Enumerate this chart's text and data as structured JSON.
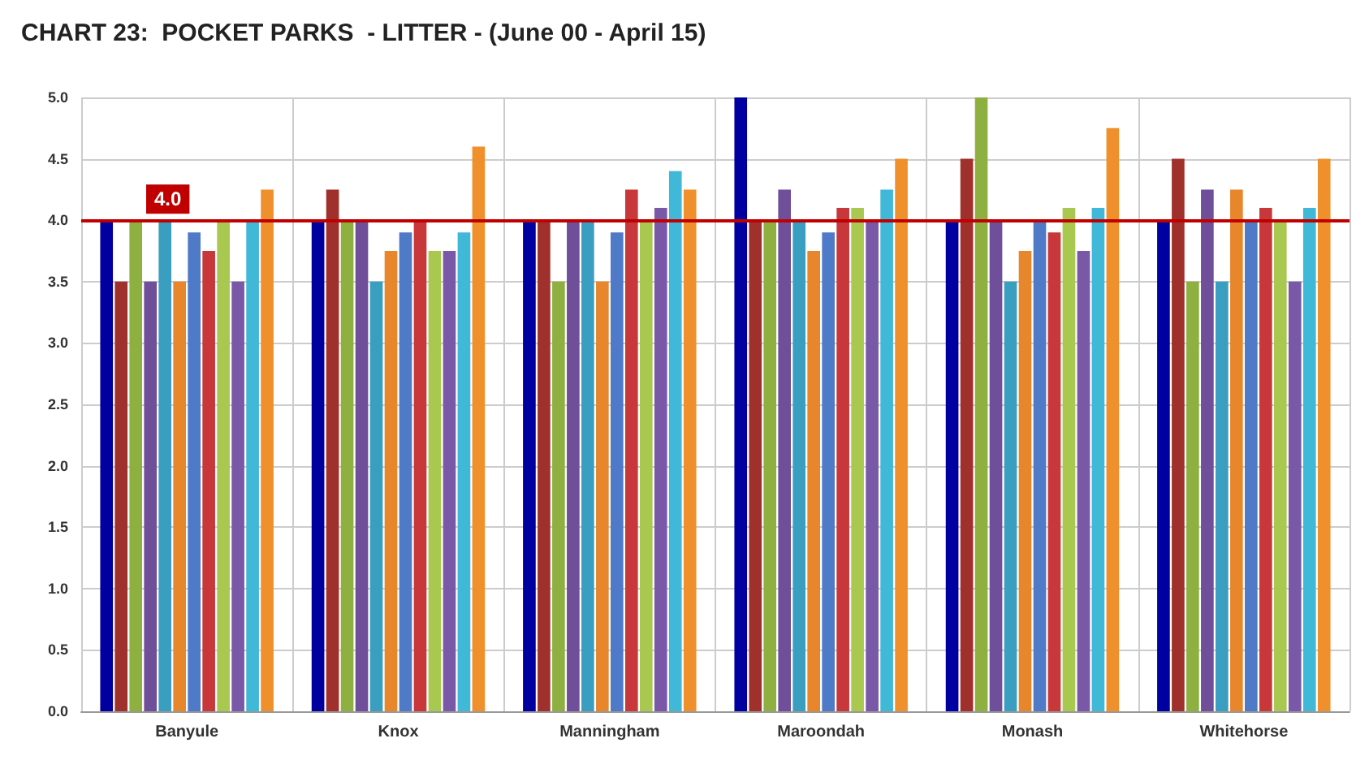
{
  "chart_data": {
    "type": "bar",
    "title": "CHART 23:  POCKET PARKS  - LITTER - (June 00 - April 15)",
    "categories": [
      "Banyule",
      "Knox",
      "Manningham",
      "Maroondah",
      "Monash",
      "Whitehorse"
    ],
    "series": [
      {
        "color": "#0000a0",
        "values": [
          4.0,
          4.0,
          4.0,
          5.0,
          4.0,
          4.0
        ]
      },
      {
        "color": "#a0302c",
        "values": [
          3.5,
          4.25,
          4.0,
          4.0,
          4.5,
          4.5
        ]
      },
      {
        "color": "#8db040",
        "values": [
          4.0,
          4.0,
          3.5,
          4.0,
          5.0,
          3.5
        ]
      },
      {
        "color": "#6f4f9a",
        "values": [
          3.5,
          4.0,
          4.0,
          4.25,
          4.0,
          4.25
        ]
      },
      {
        "color": "#3a9ec0",
        "values": [
          4.0,
          3.5,
          4.0,
          4.0,
          3.5,
          3.5
        ]
      },
      {
        "color": "#e8862c",
        "values": [
          3.5,
          3.75,
          3.5,
          3.75,
          3.75,
          4.25
        ]
      },
      {
        "color": "#4f7ac8",
        "values": [
          3.9,
          3.9,
          3.9,
          3.9,
          4.0,
          4.0
        ]
      },
      {
        "color": "#c8383a",
        "values": [
          3.75,
          4.0,
          4.25,
          4.1,
          3.9,
          4.1
        ]
      },
      {
        "color": "#a8c850",
        "values": [
          4.0,
          3.75,
          4.0,
          4.1,
          4.1,
          4.0
        ]
      },
      {
        "color": "#7a58a8",
        "values": [
          3.5,
          3.75,
          4.1,
          4.0,
          3.75,
          3.5
        ]
      },
      {
        "color": "#40b8d8",
        "values": [
          4.0,
          3.9,
          4.4,
          4.25,
          4.1,
          4.1
        ]
      },
      {
        "color": "#f0902c",
        "values": [
          4.25,
          4.6,
          4.25,
          4.5,
          4.75,
          4.5
        ]
      }
    ],
    "ylim": [
      0,
      5
    ],
    "yticks": [
      {
        "value": 0,
        "label": "0.0"
      },
      {
        "value": 0.5,
        "label": "0.5"
      },
      {
        "value": 1,
        "label": "1.0"
      },
      {
        "value": 1.5,
        "label": "1.5"
      },
      {
        "value": 2,
        "label": "2.0"
      },
      {
        "value": 2.5,
        "label": "2.5"
      },
      {
        "value": 3,
        "label": "3.0"
      },
      {
        "value": 3.5,
        "label": "3.5"
      },
      {
        "value": 4,
        "label": "4.0"
      },
      {
        "value": 4.5,
        "label": "4.5"
      },
      {
        "value": 5,
        "label": "5.0"
      }
    ],
    "ref_lines": [
      {
        "axis": "y",
        "value": 4,
        "label": "4.0",
        "color": "#c00000"
      }
    ],
    "grid": true
  }
}
